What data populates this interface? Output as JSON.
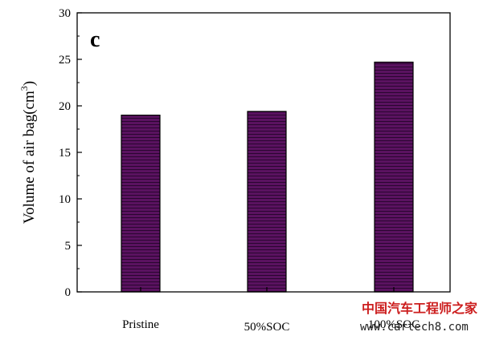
{
  "chart_data": {
    "type": "bar",
    "panel_label": "c",
    "categories": [
      "Pristine",
      "50%SOC",
      "100%SOC"
    ],
    "values": [
      19.0,
      19.4,
      24.7
    ],
    "ylabel_prefix": "Volume of air bag(cm",
    "ylabel_sup": "3",
    "ylabel_suffix": ")",
    "ylim": [
      0,
      30
    ],
    "yticks": [
      0,
      5,
      10,
      15,
      20,
      25,
      30
    ],
    "grid": false,
    "bar_color": "#5a1260",
    "bar_hatch_color": "#2a0630"
  },
  "watermark": {
    "text_cn": "中国汽车工程师之家",
    "url": "www.cartech8.com"
  }
}
